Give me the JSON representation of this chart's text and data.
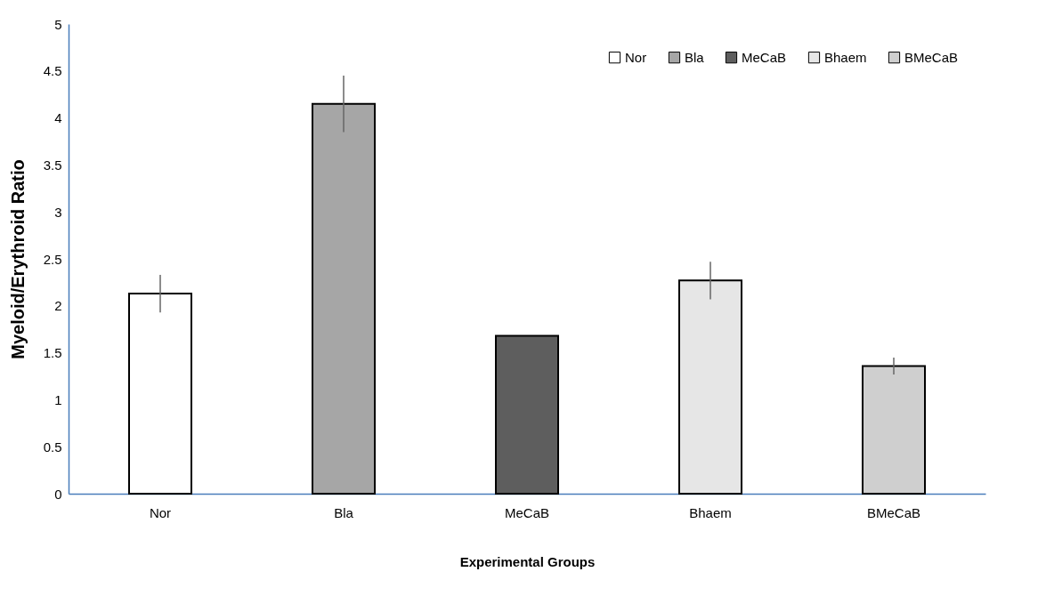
{
  "chart_data": {
    "type": "bar",
    "xlabel": "Experimental Groups",
    "ylabel": "Myeloid/Erythroid Ratio",
    "categories": [
      "Nor",
      "Bla",
      "MeCaB",
      "Bhaem",
      "BMeCaB"
    ],
    "series": [
      {
        "name": "Nor",
        "color": "#ffffff",
        "values": [
          2.13,
          null,
          null,
          null,
          null
        ],
        "errors": [
          0.2,
          null,
          null,
          null,
          null
        ]
      },
      {
        "name": "Bla",
        "color": "#a6a6a6",
        "values": [
          null,
          4.15,
          null,
          null,
          null
        ],
        "errors": [
          null,
          0.3,
          null,
          null,
          null
        ]
      },
      {
        "name": "MeCaB",
        "color": "#5e5e5e",
        "values": [
          null,
          null,
          1.68,
          null,
          null
        ]
      },
      {
        "name": "Bhaem",
        "color": "#e6e6e6",
        "values": [
          null,
          null,
          null,
          2.27,
          null
        ],
        "errors": [
          null,
          null,
          null,
          0.2,
          null
        ]
      },
      {
        "name": "BMeCaB",
        "color": "#cfcfcf",
        "values": [
          null,
          null,
          null,
          null,
          1.36
        ],
        "errors": [
          null,
          null,
          null,
          null,
          0.09
        ]
      }
    ],
    "ylim": [
      0,
      5
    ],
    "yticks": [
      0,
      0.5,
      1,
      1.5,
      2,
      2.5,
      3,
      3.5,
      4,
      4.5,
      5
    ],
    "legend": "top right"
  }
}
